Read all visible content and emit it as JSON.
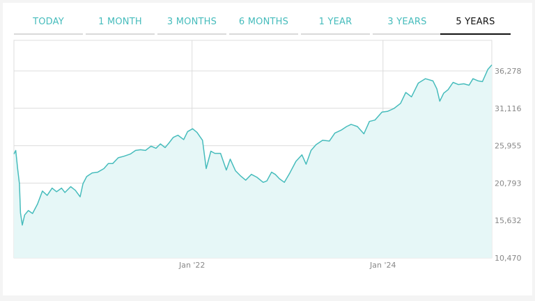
{
  "tabs": [
    {
      "label": "TODAY",
      "active": false
    },
    {
      "label": "1 MONTH",
      "active": false
    },
    {
      "label": "3 MONTHS",
      "active": false
    },
    {
      "label": "6 MONTHS",
      "active": false
    },
    {
      "label": "1 YEAR",
      "active": false
    },
    {
      "label": "3 YEARS",
      "active": false
    },
    {
      "label": "5 YEARS",
      "active": true
    }
  ],
  "colors": {
    "accent": "#46bcbc",
    "area_fill": "#e6f7f7",
    "grid": "#dcdcdc",
    "tick_text": "#888888",
    "active_tab": "#111111"
  },
  "chart_data": {
    "type": "area",
    "title": "",
    "xlabel": "",
    "ylabel": "",
    "x_ticks": [
      "Jan '22",
      "Jan '24"
    ],
    "y_ticks": [
      10470,
      15632,
      20793,
      25955,
      31116,
      36278
    ],
    "y_tick_labels": [
      "10,470",
      "15,632",
      "20,793",
      "25,955",
      "31,116",
      "36,278"
    ],
    "ylim": [
      10470,
      40500
    ],
    "xlim": [
      "2020-02-20",
      "2025-02-20"
    ],
    "grid": true,
    "series": [
      {
        "x": [
          "2020-02-20",
          "2020-02-27",
          "2020-03-05",
          "2020-03-12",
          "2020-03-16",
          "2020-03-23",
          "2020-04-01",
          "2020-04-15",
          "2020-05-01",
          "2020-05-20",
          "2020-06-08",
          "2020-06-26",
          "2020-07-15",
          "2020-08-01",
          "2020-08-20",
          "2020-09-02",
          "2020-09-24",
          "2020-10-12",
          "2020-10-30",
          "2020-11-10",
          "2020-11-24",
          "2020-12-15",
          "2021-01-05",
          "2021-01-29",
          "2021-02-15",
          "2021-03-04",
          "2021-03-25",
          "2021-04-15",
          "2021-05-10",
          "2021-05-30",
          "2021-06-18",
          "2021-07-07",
          "2021-07-28",
          "2021-08-16",
          "2021-09-02",
          "2021-09-20",
          "2021-10-04",
          "2021-10-21",
          "2021-11-08",
          "2021-11-30",
          "2021-12-15",
          "2022-01-03",
          "2022-01-20",
          "2022-02-10",
          "2022-02-24",
          "2022-03-14",
          "2022-03-29",
          "2022-04-20",
          "2022-05-12",
          "2022-05-27",
          "2022-06-16",
          "2022-07-05",
          "2022-07-25",
          "2022-08-16",
          "2022-09-06",
          "2022-09-30",
          "2022-10-14",
          "2022-11-01",
          "2022-11-15",
          "2022-12-01",
          "2022-12-20",
          "2023-01-10",
          "2023-02-02",
          "2023-02-25",
          "2023-03-13",
          "2023-04-01",
          "2023-04-20",
          "2023-05-15",
          "2023-06-10",
          "2023-07-01",
          "2023-07-25",
          "2023-08-15",
          "2023-09-01",
          "2023-09-25",
          "2023-10-20",
          "2023-11-10",
          "2023-12-01",
          "2023-12-28",
          "2024-01-19",
          "2024-02-12",
          "2024-03-08",
          "2024-03-28",
          "2024-04-19",
          "2024-05-15",
          "2024-06-11",
          "2024-07-10",
          "2024-07-25",
          "2024-08-05",
          "2024-08-20",
          "2024-09-06",
          "2024-09-25",
          "2024-10-15",
          "2024-11-05",
          "2024-11-25",
          "2024-12-10",
          "2024-12-30",
          "2025-01-15",
          "2025-02-05",
          "2025-02-20"
        ],
        "values": [
          24800,
          25300,
          22800,
          20700,
          16700,
          15000,
          16400,
          17000,
          16600,
          17900,
          19700,
          19100,
          20100,
          19600,
          20100,
          19500,
          20300,
          19800,
          18900,
          20700,
          21700,
          22200,
          22300,
          22800,
          23500,
          23500,
          24300,
          24500,
          24800,
          25300,
          25400,
          25300,
          25900,
          25600,
          26200,
          25700,
          26300,
          27100,
          27400,
          26800,
          27900,
          28300,
          27800,
          26700,
          22800,
          25200,
          24900,
          24900,
          22600,
          24100,
          22500,
          21800,
          21200,
          22000,
          21600,
          20900,
          21100,
          22300,
          22000,
          21400,
          20900,
          22200,
          23800,
          24700,
          23400,
          25300,
          26100,
          26700,
          26600,
          27700,
          28100,
          28600,
          28900,
          28600,
          27600,
          29300,
          29500,
          30600,
          30700,
          31100,
          31800,
          33300,
          32700,
          34600,
          35200,
          34900,
          33800,
          32100,
          33200,
          33700,
          34700,
          34400,
          34500,
          34300,
          35200,
          34900,
          34800,
          36500,
          37100
        ]
      }
    ]
  }
}
